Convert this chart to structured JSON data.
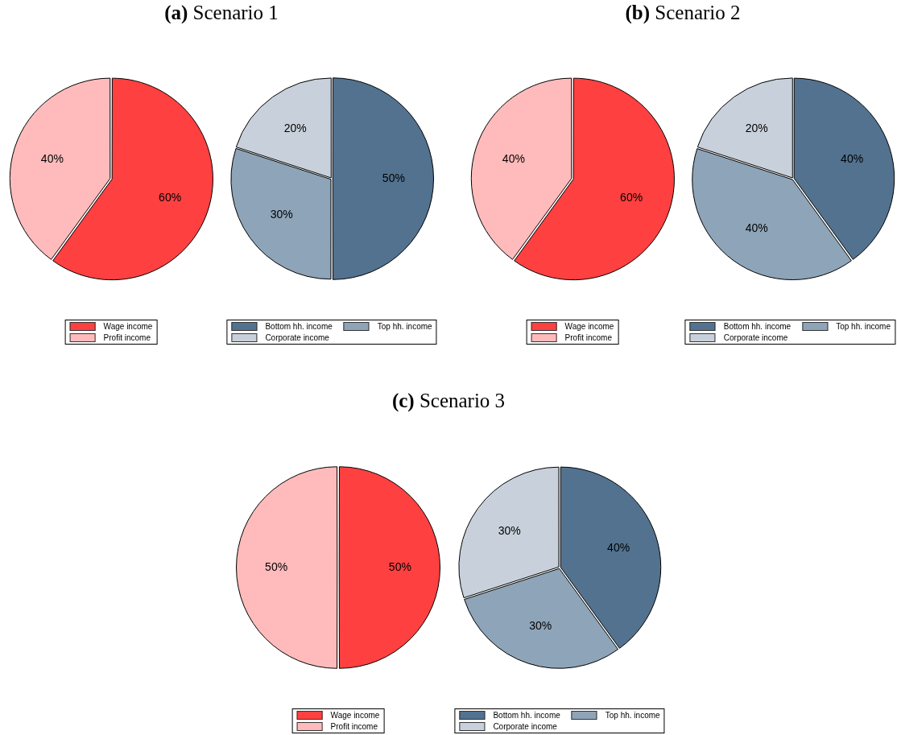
{
  "chart_data": [
    {
      "type": "pie",
      "title": "(a) Scenario 1",
      "categories": [
        "Wage income",
        "Profit income"
      ],
      "values": [
        60,
        40
      ],
      "colors": [
        "#ff4040",
        "#ffbbbb"
      ],
      "value_labels": [
        "60%",
        "40%"
      ],
      "legend": "bottom"
    },
    {
      "type": "pie",
      "categories": [
        "Bottom hh. income",
        "Top hh. income",
        "Corporate income"
      ],
      "values": [
        50,
        30,
        20
      ],
      "colors": [
        "#52728f",
        "#8ea4b8",
        "#c8d1db"
      ],
      "value_labels": [
        "50%",
        "30%",
        "20%"
      ],
      "legend": "bottom"
    },
    {
      "type": "pie",
      "title": "(b) Scenario 2",
      "categories": [
        "Wage income",
        "Profit income"
      ],
      "values": [
        60,
        40
      ],
      "colors": [
        "#ff4040",
        "#ffbbbb"
      ],
      "value_labels": [
        "60%",
        "40%"
      ],
      "legend": "bottom"
    },
    {
      "type": "pie",
      "categories": [
        "Bottom hh. income",
        "Top hh. income",
        "Corporate income"
      ],
      "values": [
        40,
        40,
        20
      ],
      "colors": [
        "#52728f",
        "#8ea4b8",
        "#c8d1db"
      ],
      "value_labels": [
        "40%",
        "40%",
        "20%"
      ],
      "legend": "bottom"
    },
    {
      "type": "pie",
      "title": "(c) Scenario 3",
      "categories": [
        "Wage income",
        "Profit income"
      ],
      "values": [
        50,
        50
      ],
      "colors": [
        "#ff4040",
        "#ffbbbb"
      ],
      "value_labels": [
        "50%",
        "50%"
      ],
      "legend": "bottom"
    },
    {
      "type": "pie",
      "categories": [
        "Bottom hh. income",
        "Top hh. income",
        "Corporate income"
      ],
      "values": [
        40,
        30,
        30
      ],
      "colors": [
        "#52728f",
        "#8ea4b8",
        "#c8d1db"
      ],
      "value_labels": [
        "40%",
        "30%",
        "30%"
      ],
      "legend": "bottom"
    }
  ]
}
